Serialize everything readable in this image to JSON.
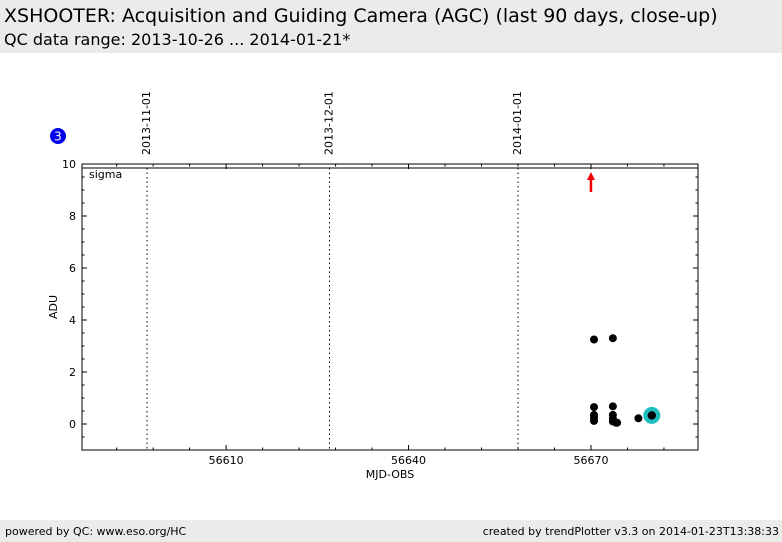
{
  "header": {
    "title": "XSHOOTER: Acquisition and Guiding Camera (AGC) (last 90 days, close-up)",
    "subtitle": "QC data range: 2013-10-26 ... 2014-01-21*"
  },
  "footer": {
    "left": "powered by QC: www.eso.org/HC",
    "right": "created by trendPlotter v3.3 on 2014-01-23T13:38:33"
  },
  "badge": {
    "number": "3",
    "color": "#0000ee"
  },
  "chart_data": {
    "type": "scatter",
    "panel_label": "sigma",
    "xlabel": "MJD-OBS",
    "ylabel": "ADU",
    "xlim": [
      56586.3,
      56687.6
    ],
    "ylim": [
      -1,
      10
    ],
    "xticks": [
      56610,
      56640,
      56670
    ],
    "yticks": [
      0,
      2,
      4,
      6,
      8,
      10
    ],
    "date_markers": [
      {
        "label": "2013-11-01",
        "x": 56597
      },
      {
        "label": "2013-12-01",
        "x": 56627
      },
      {
        "label": "2014-01-01",
        "x": 56658
      }
    ],
    "points": [
      {
        "x": 56670.5,
        "y": 3.25
      },
      {
        "x": 56673.6,
        "y": 3.3
      },
      {
        "x": 56670.5,
        "y": 0.65
      },
      {
        "x": 56673.6,
        "y": 0.68
      },
      {
        "x": 56670.5,
        "y": 0.35
      },
      {
        "x": 56670.5,
        "y": 0.25
      },
      {
        "x": 56670.5,
        "y": 0.12
      },
      {
        "x": 56673.6,
        "y": 0.35
      },
      {
        "x": 56673.6,
        "y": 0.2
      },
      {
        "x": 56673.6,
        "y": 0.1
      },
      {
        "x": 56674.1,
        "y": 0.05
      },
      {
        "x": 56674.3,
        "y": 0.05
      },
      {
        "x": 56677.8,
        "y": 0.22
      }
    ],
    "latest_point": {
      "x": 56680.0,
      "y": 0.33
    },
    "out_of_range_arrow_x": 56670.0,
    "colors": {
      "points": "#000000",
      "latest": "#1fbfbf",
      "arrow": "#ee0000"
    }
  }
}
